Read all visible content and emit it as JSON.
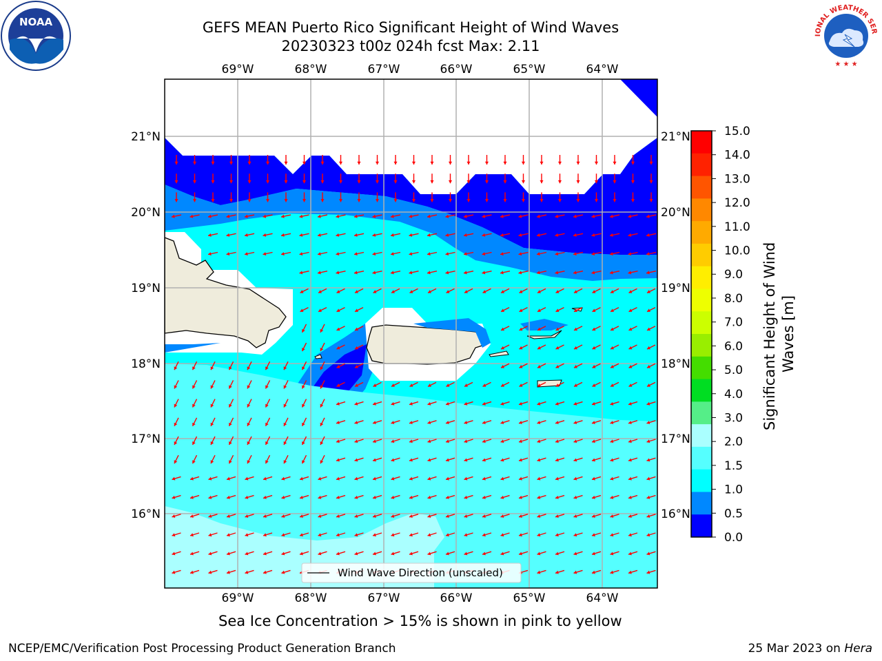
{
  "title": {
    "line1": "GEFS MEAN Puerto Rico Significant Height of Wind Waves",
    "line2": "20230323 t00z 024h fcst   Max: 2.11"
  },
  "map": {
    "lon_labels": [
      "69°W",
      "68°W",
      "67°W",
      "66°W",
      "65°W",
      "64°W"
    ],
    "lat_labels": [
      "21°N",
      "20°N",
      "19°N",
      "18°N",
      "17°N",
      "16°N"
    ],
    "legend_label": "Wind Wave Direction (unscaled)",
    "arrow_color": "#ff0000",
    "land_color": "#efecdc"
  },
  "colorbar": {
    "label": "Significant Height of Wind Waves [m]",
    "ticks": [
      "15.0",
      "14.0",
      "13.0",
      "12.0",
      "11.0",
      "10.0",
      "9.0",
      "8.0",
      "7.0",
      "6.0",
      "5.0",
      "4.0",
      "3.0",
      "2.0",
      "1.5",
      "1.0",
      "0.5",
      "0.0"
    ],
    "colors": [
      "#ff0000",
      "#ff2200",
      "#ff5500",
      "#ff8800",
      "#ffaa00",
      "#ffcc00",
      "#ffee00",
      "#eeff00",
      "#ccff00",
      "#99ee00",
      "#44dd00",
      "#00dd22",
      "#55ee88",
      "#aaffff",
      "#55ffff",
      "#00ffff",
      "#0088ff",
      "#0000ff"
    ]
  },
  "note": "Sea Ice Concentration > 15% is shown in pink to yellow",
  "credit": "NCEP/EMC/Verification Post Processing Product Generation Branch",
  "date": "25 Mar 2023 on",
  "date_host": "Hera",
  "logos": {
    "left": "NOAA",
    "right": "NATIONAL WEATHER SERVICE"
  }
}
